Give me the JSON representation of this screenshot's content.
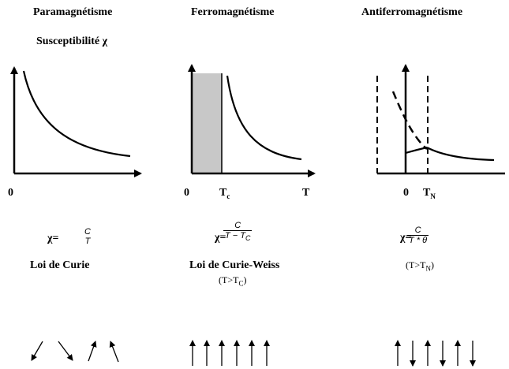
{
  "columns": [
    {
      "title": "Paramagnétisme",
      "subtitle": "Susceptibilité χ",
      "axis_labels": {
        "origin": "0"
      },
      "formula": {
        "lhs": "χ=",
        "numerator": "C",
        "denominator": "T"
      },
      "law": "Loi de Curie",
      "spin_pattern": "random"
    },
    {
      "title": "Ferromagnétisme",
      "axis_labels": {
        "origin": "0",
        "tc": "T",
        "tc_sub": "c",
        "t": "T"
      },
      "formula": {
        "lhs": "χ=",
        "numerator": "C",
        "denominator": "T − T",
        "denominator_sub": "C"
      },
      "law": "Loi de Curie-Weiss",
      "condition": "(T>T",
      "condition_sub": "C",
      "condition_end": ")",
      "spin_pattern": "parallel"
    },
    {
      "title": "Antiferromagnétisme",
      "axis_labels": {
        "origin": "0",
        "tn": "T",
        "tn_sub": "N"
      },
      "formula": {
        "lhs": "χ=",
        "numerator": "C",
        "denominator": "T * θ"
      },
      "condition": "(T>T",
      "condition_sub": "N",
      "condition_end": ")",
      "spin_pattern": "antiparallel"
    }
  ],
  "colors": {
    "ink": "#000000",
    "shade": "#c8c8c8"
  }
}
